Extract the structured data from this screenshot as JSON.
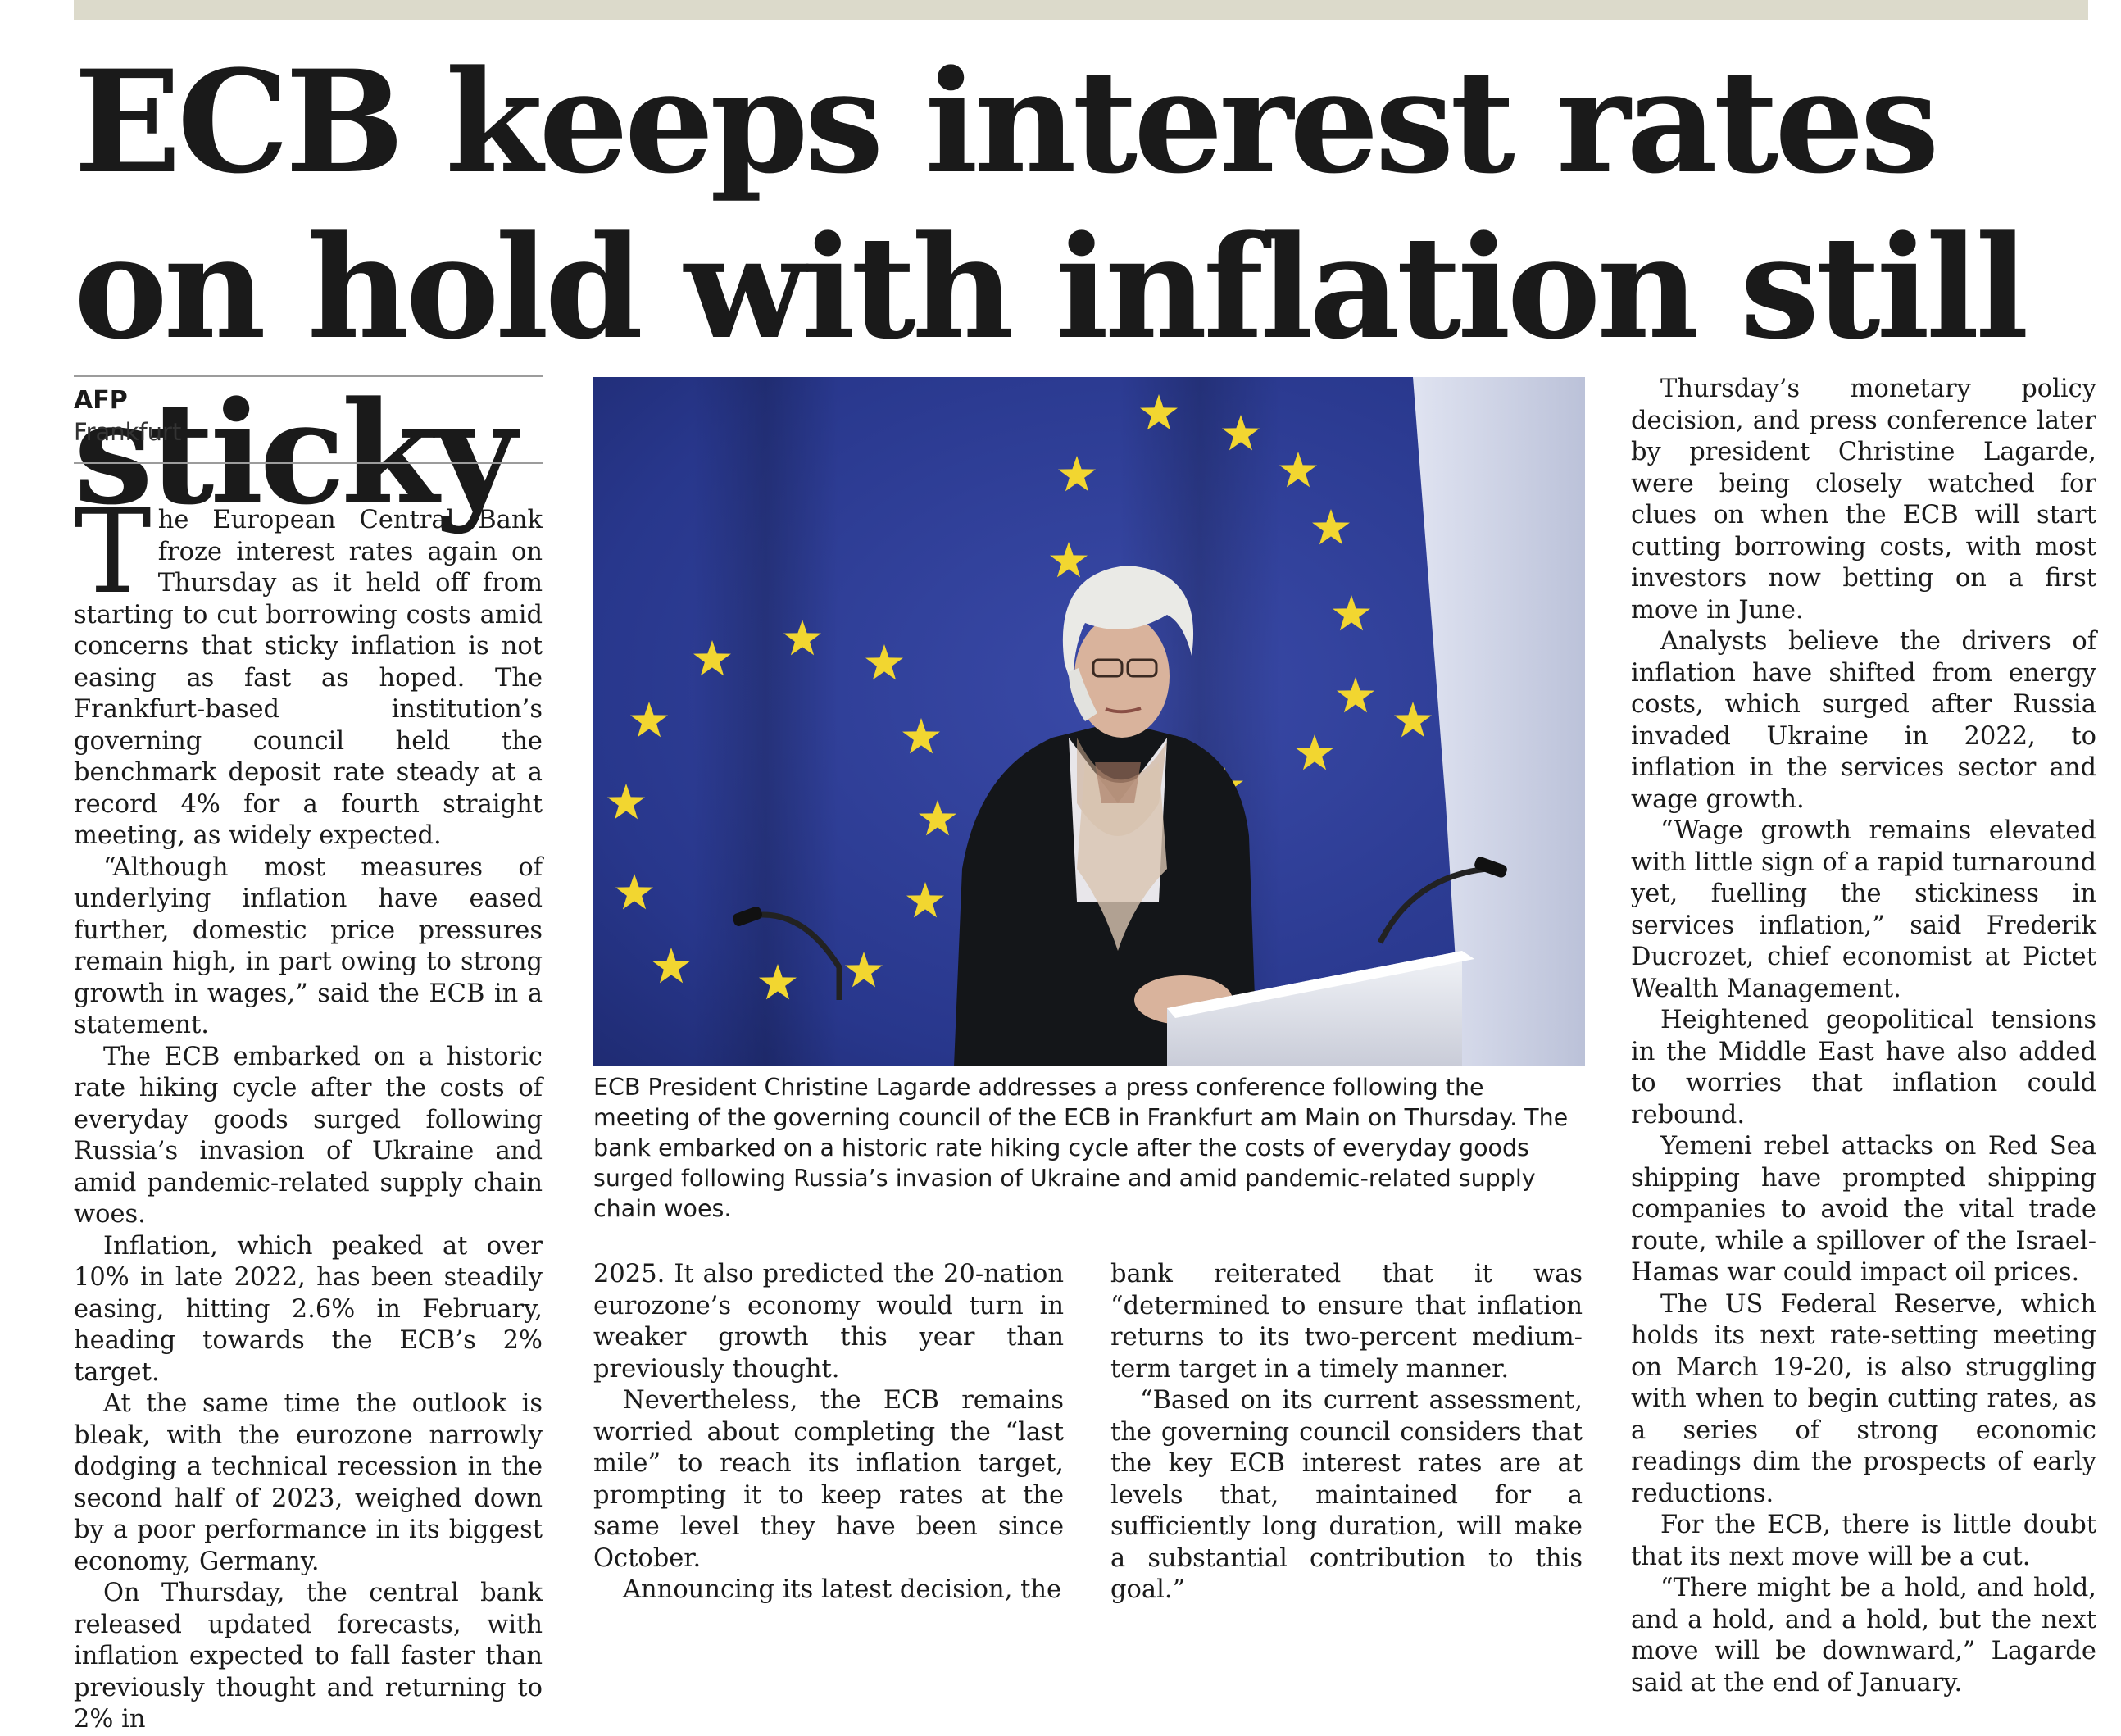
{
  "headline": "ECB keeps interest rates on hold with inflation still sticky",
  "byline": {
    "agency": "AFP",
    "place": "Frankfurt"
  },
  "photo": {
    "caption": "ECB President Christine Lagarde addresses a press conference following the meeting of the governing council of the ECB in Frankfurt am Main on Thursday. The bank embarked on a historic rate hiking cycle after the costs of everyday goods surged following Russia’s invasion of Ukraine and amid pandemic-related supply chain woes.",
    "colors": {
      "flag_blue": "#2c3c94",
      "star_yellow": "#f2d630"
    }
  },
  "body": {
    "col1": {
      "dropcap": "T",
      "p1_rest": "he European Central Bank froze interest rates again on Thursday as it held off from starting to cut borrowing costs amid concerns that sticky inflation is not easing as fast as hoped. The Frankfurt-based institution’s governing council held the benchmark deposit rate steady at a record 4% for a fourth straight meeting, as widely expected.",
      "p2": "“Although most measures of underlying inflation have eased further, domestic price pressures remain high, in part owing to strong growth in wages,” said the ECB in a statement.",
      "p3": "The ECB embarked on a historic rate hiking cycle after the costs of everyday goods surged following Russia’s invasion of Ukraine and amid pandemic-related supply chain woes.",
      "p4": "Inflation, which peaked at over 10% in late 2022, has been steadily easing, hitting 2.6% in February, heading towards the ECB’s 2% target.",
      "p5": "At the same time the outlook is bleak, with the eurozone narrowly dodging a technical recession in the second half of 2023, weighed down by a poor performance in its biggest economy, Germany.",
      "p6": "On Thursday, the central bank released updated forecasts, with inflation expected to fall faster than previously thought and returning to 2% in"
    },
    "col2": {
      "p1": "2025. It also predicted the 20-nation eurozone’s economy would turn in weaker growth this year than previously thought.",
      "p2": "Nevertheless, the ECB remains worried about completing the “last mile” to reach its inflation target, prompting it to keep rates at the same level they have been since October.",
      "p3": "Announcing its latest decision, the"
    },
    "col3": {
      "p1": "bank reiterated that it was “determined to ensure that inflation returns to its two-percent medium-term target in a timely manner.",
      "p2": "“Based on its current assessment, the governing council considers that the key ECB interest rates are at levels that, maintained for a sufficiently long duration, will make a substantial contribution to this goal.”"
    },
    "col4": {
      "p1": "Thursday’s monetary policy decision, and press conference later by president Christine Lagarde, were being closely watched for clues on when the ECB will start cutting borrowing costs, with most investors now betting on a first move in June.",
      "p2": "Analysts believe the drivers of inflation have shifted from energy costs, which surged after Russia invaded Ukraine in 2022, to inflation in the services sector and wage growth.",
      "p3": "“Wage growth remains elevated with little sign of a rapid turnaround yet, fuelling the stickiness in services inflation,” said Frederik Ducrozet, chief economist at Pictet Wealth Management.",
      "p4": "Heightened geopolitical tensions in the Middle East have also added to worries that inflation could rebound.",
      "p5": "Yemeni rebel attacks on Red Sea shipping have prompted shipping companies to avoid the vital trade route, while a spillover of the Israel-Hamas war could impact oil prices.",
      "p6": "The US Federal Reserve, which holds its next rate-setting meeting on March 19-20, is also struggling with when to begin cutting rates, as a series of strong economic readings dim the prospects of early reductions.",
      "p7": "For the ECB, there is little doubt that its next move will be a cut.",
      "p8": "“There might be a hold, and hold, and a hold, and a hold, but the next move will be downward,” Lagarde said at the end of January."
    }
  }
}
